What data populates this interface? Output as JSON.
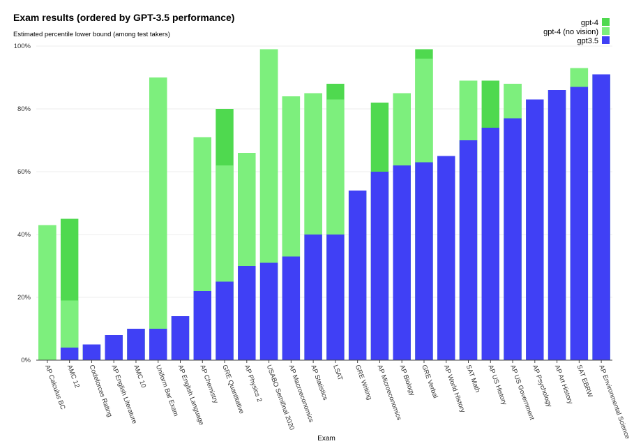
{
  "chart_data": {
    "type": "bar",
    "title": "Exam results (ordered by GPT-3.5 performance)",
    "subtitle": "Estimated percentile lower bound (among test takers)",
    "xlabel": "Exam",
    "ylabel": "",
    "ylim": [
      0,
      100
    ],
    "yticks": [
      "0%",
      "20%",
      "40%",
      "60%",
      "80%",
      "100%"
    ],
    "legend_position": "top-right",
    "grid": true,
    "categories": [
      "AP Calculus BC",
      "AMC 12",
      "Codeforces Rating",
      "AP English Literature",
      "AMC 10",
      "Uniform Bar Exam",
      "AP English Language",
      "AP Chemistry",
      "GRE Quantitative",
      "AP Physics 2",
      "USABO Semifinal 2020",
      "AP Macroeconomics",
      "AP Statistics",
      "LSAT",
      "GRE Writing",
      "AP Microeconomics",
      "AP Biology",
      "GRE Verbal",
      "AP World History",
      "SAT Math",
      "AP US History",
      "AP US Government",
      "AP Psychology",
      "AP Art History",
      "SAT EBRW",
      "AP Environmental Science"
    ],
    "series": [
      {
        "name": "gpt-4",
        "color": "#4fd94f",
        "values": [
          43,
          45,
          5,
          8,
          10,
          90,
          14,
          71,
          80,
          66,
          99,
          84,
          85,
          88,
          54,
          82,
          85,
          99,
          65,
          89,
          89,
          88,
          83,
          86,
          93,
          91
        ]
      },
      {
        "name": "gpt-4 (no vision)",
        "color": "#7def7d",
        "values": [
          43,
          19,
          5,
          8,
          10,
          90,
          14,
          71,
          62,
          66,
          99,
          84,
          85,
          83,
          54,
          60,
          85,
          96,
          65,
          89,
          74,
          88,
          83,
          86,
          93,
          91
        ]
      },
      {
        "name": "gpt3.5",
        "color": "#4040f5",
        "values": [
          0,
          4,
          5,
          8,
          10,
          10,
          14,
          22,
          25,
          30,
          31,
          33,
          40,
          40,
          54,
          60,
          62,
          63,
          65,
          70,
          74,
          77,
          83,
          86,
          87,
          91
        ]
      }
    ]
  }
}
